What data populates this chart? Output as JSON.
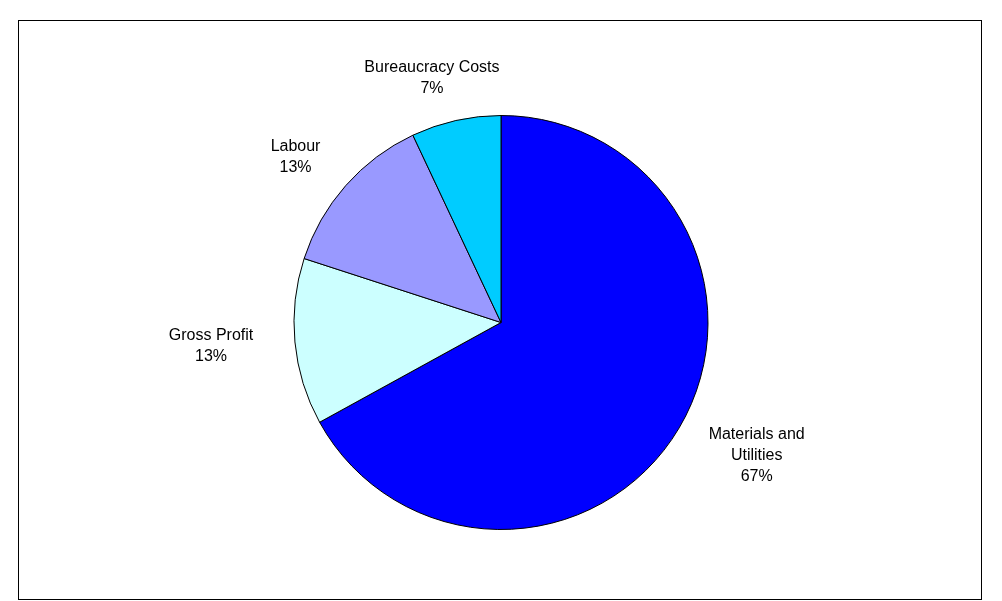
{
  "chart_data": {
    "type": "pie",
    "categories": [
      "Materials and Utilities",
      "Gross Profit",
      "Labour",
      "Bureaucracy Costs"
    ],
    "values": [
      67,
      13,
      13,
      7
    ],
    "colors": [
      "#0000ff",
      "#ccffff",
      "#9999ff",
      "#00ccff"
    ],
    "value_labels": [
      "67%",
      "13%",
      "13%",
      "7%"
    ],
    "legend": false
  }
}
